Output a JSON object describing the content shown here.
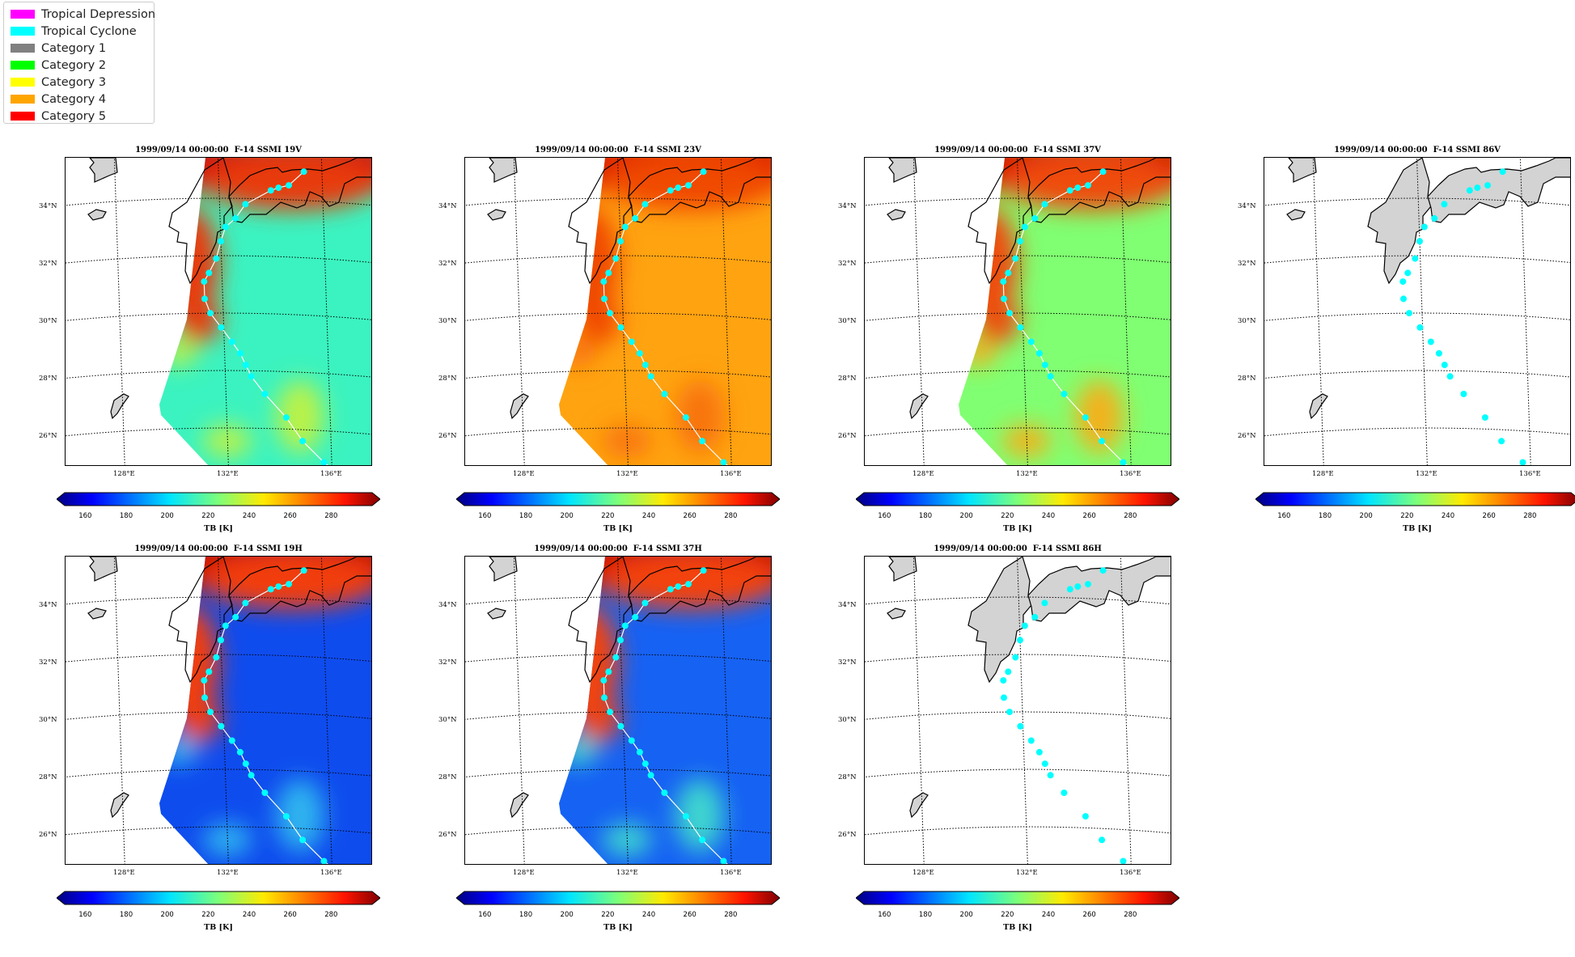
{
  "legend": {
    "items": [
      {
        "label": "Tropical Depression",
        "color": "#ff00ff"
      },
      {
        "label": "Tropical Cyclone",
        "color": "#00ffff"
      },
      {
        "label": "Category 1",
        "color": "#808080"
      },
      {
        "label": "Category 2",
        "color": "#00ff00"
      },
      {
        "label": "Category 3",
        "color": "#ffff00"
      },
      {
        "label": "Category 4",
        "color": "#ffa500"
      },
      {
        "label": "Category 5",
        "color": "#ff0000"
      }
    ]
  },
  "axes": {
    "lat_ticks": [
      "34°N",
      "32°N",
      "30°N",
      "28°N",
      "26°N"
    ],
    "lon_ticks": [
      "128°E",
      "132°E",
      "136°E"
    ]
  },
  "colorbar": {
    "ticks": [
      "160",
      "180",
      "200",
      "220",
      "240",
      "260",
      "280"
    ],
    "label": "TB [K]",
    "range": [
      150,
      300
    ]
  },
  "track_color": "#00ffff",
  "chart_data": {
    "type": "scatter",
    "track": {
      "lon": [
        135.3,
        134.7,
        134.3,
        134.0,
        133.0,
        132.6,
        132.2,
        132.0,
        131.8,
        131.5,
        131.3,
        131.3,
        131.5,
        131.9,
        132.3,
        132.6,
        132.8,
        133.0,
        133.5,
        134.3,
        134.9,
        135.7,
        136.3
      ],
      "lat": [
        35.0,
        34.5,
        34.4,
        34.3,
        33.8,
        33.3,
        33.0,
        32.5,
        31.9,
        31.4,
        31.1,
        30.5,
        30.0,
        29.5,
        29.0,
        28.6,
        28.2,
        27.8,
        27.2,
        26.4,
        25.6,
        24.9,
        24.5
      ]
    },
    "panels": [
      {
        "title": "1999/09/14 00:00:00  F-14 SSMI 19V",
        "channel": "19V",
        "ocean": "#3bf3c0",
        "coast": "#e83a10",
        "north": "#d10f07",
        "spot": "#b9f248",
        "show_field": true
      },
      {
        "title": "1999/09/14 00:00:00  F-14 SSMI 23V",
        "channel": "23V",
        "ocean": "#ffa310",
        "coast": "#f04a06",
        "north": "#dd1a02",
        "spot": "#f87410",
        "show_field": true
      },
      {
        "title": "1999/09/14 00:00:00  F-14 SSMI 37V",
        "channel": "37V",
        "ocean": "#80ff72",
        "coast": "#ef4b0b",
        "north": "#d60f05",
        "spot": "#f2b21b",
        "show_field": true
      },
      {
        "title": "1999/09/14 00:00:00  F-14 SSMI 86V",
        "channel": "86V",
        "ocean": "#ffffff",
        "coast": "#ffffff",
        "north": "#ffffff",
        "spot": "#ffffff",
        "show_field": false
      },
      {
        "title": "1999/09/14 00:00:00  F-14 SSMI 19H",
        "channel": "19H",
        "ocean": "#0f4cee",
        "coast": "#f23e0e",
        "north": "#cc0d05",
        "spot": "#2db3ef",
        "show_field": true
      },
      {
        "title": "1999/09/14 00:00:00  F-14 SSMI 37H",
        "channel": "37H",
        "ocean": "#1662f3",
        "coast": "#f3420d",
        "north": "#d11006",
        "spot": "#3dd4d0",
        "show_field": true
      },
      {
        "title": "1999/09/14 00:00:00  F-14 SSMI 86H",
        "channel": "86H",
        "ocean": "#ffffff",
        "coast": "#ffffff",
        "north": "#ffffff",
        "spot": "#ffffff",
        "show_field": false
      }
    ]
  }
}
